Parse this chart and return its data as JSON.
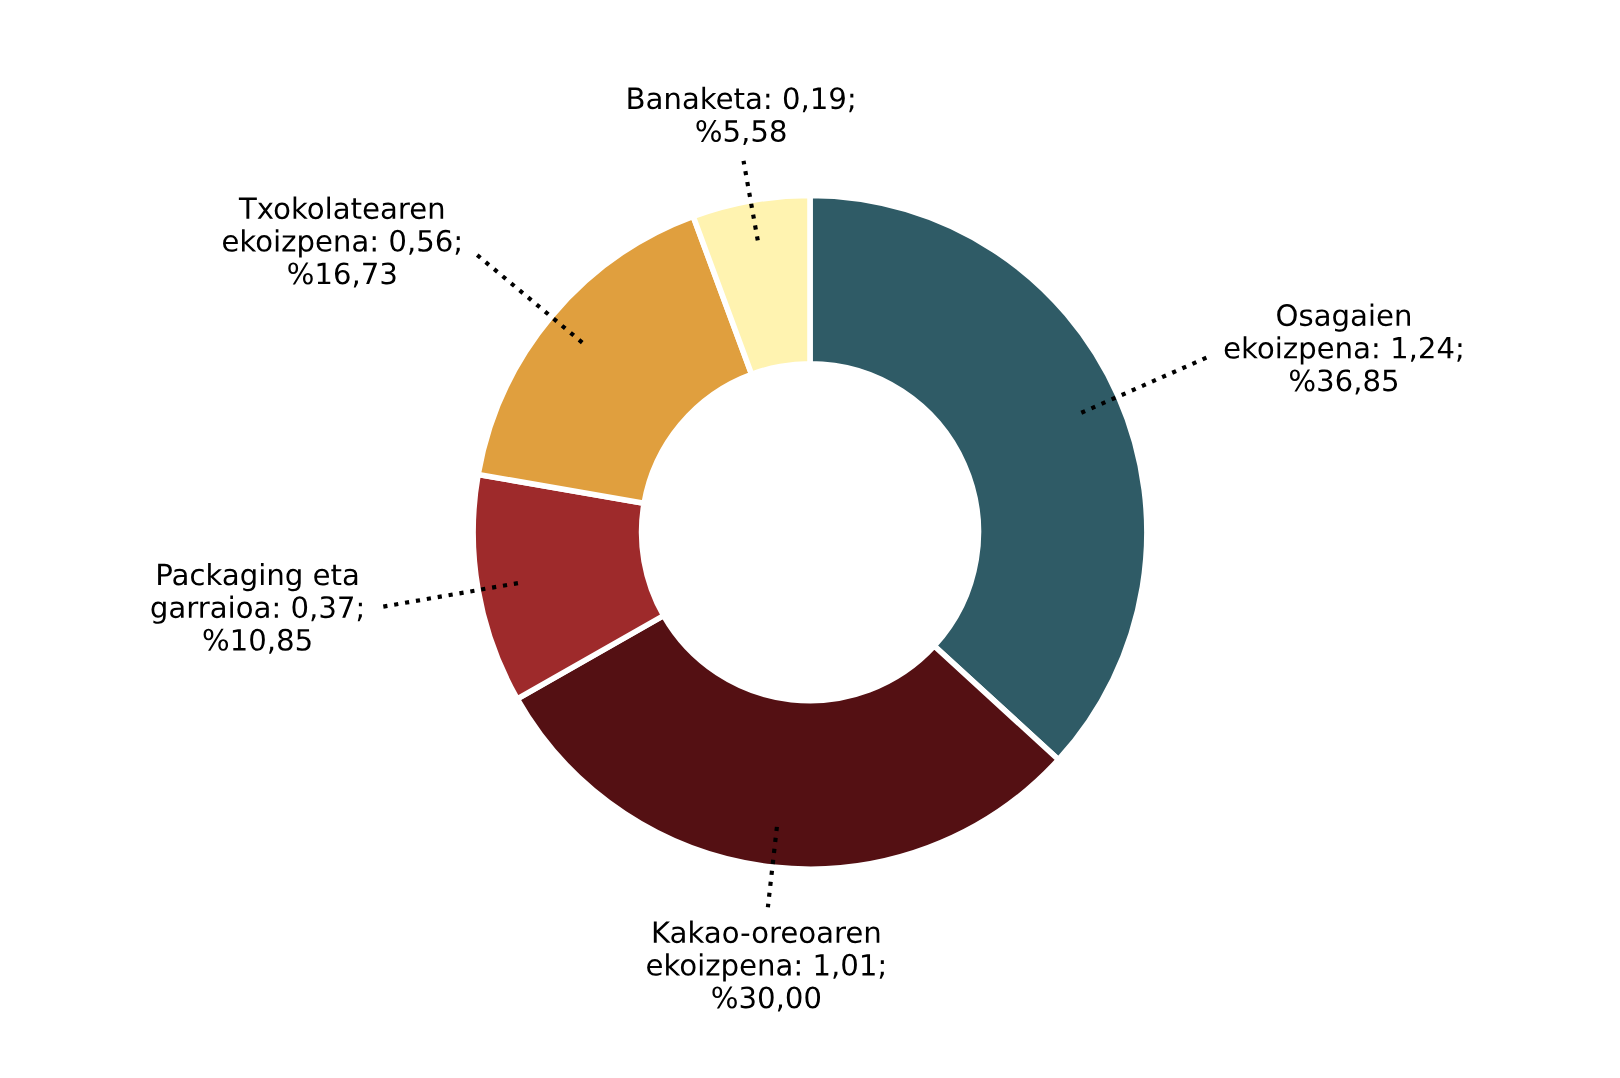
{
  "chart_data": {
    "type": "donut",
    "categories": [
      "Osagaien ekoizpena",
      "Kakao-oreoaren ekoizpena",
      "Packaging eta garraioa",
      "Txokolatearen ekoizpena",
      "Banaketa"
    ],
    "values": [
      1.24,
      1.01,
      0.37,
      0.56,
      0.19
    ],
    "value_labels": [
      "1,24;\n%36,85",
      "1,01;\n%30,00",
      "0,37;\n%10,85",
      "0,56;\n%16,73",
      "0,19;\n%5,58"
    ],
    "colors": [
      "#2f5b66",
      "#541013",
      "#9e2a2b",
      "#e09f3e",
      "#fff3b0"
    ],
    "legend": false
  }
}
